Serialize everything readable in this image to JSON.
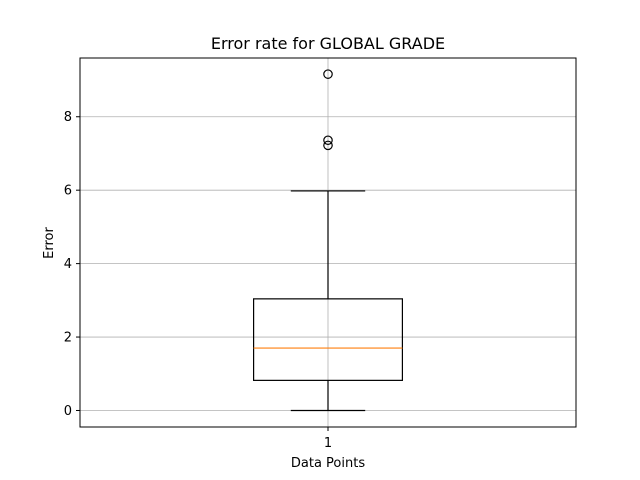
{
  "chart_data": {
    "type": "box",
    "title": "Error rate for GLOBAL GRADE",
    "xlabel": "Data Points",
    "ylabel": "Error",
    "categories": [
      "1"
    ],
    "boxes": [
      {
        "label": "1",
        "whisker_low": 0.0,
        "q1": 0.82,
        "median": 1.7,
        "q3": 3.04,
        "whisker_high": 5.98,
        "outliers": [
          7.22,
          7.36,
          9.16
        ]
      }
    ],
    "yticks": [
      "0",
      "2",
      "4",
      "6",
      "8"
    ],
    "ylim": [
      -0.45,
      9.6
    ],
    "grid": true,
    "colors": {
      "box": "#000000",
      "median": "#ff7f0e",
      "grid": "#b0b0b0",
      "outlier": "#000000"
    }
  }
}
